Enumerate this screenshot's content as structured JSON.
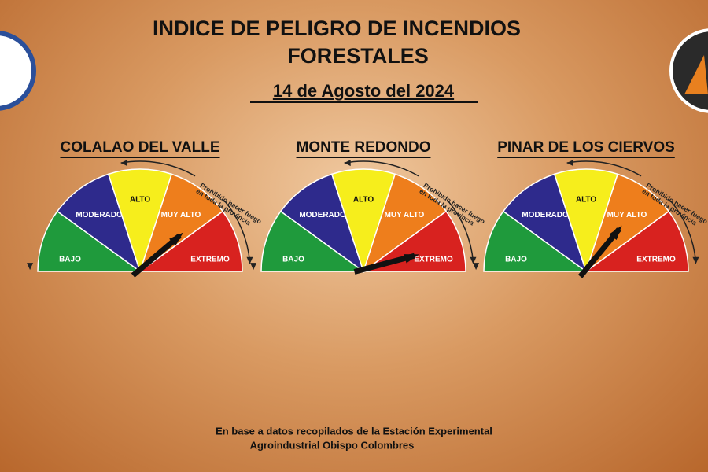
{
  "header": {
    "title_lines": [
      "INDICE DE PELIGRO DE INCENDIOS",
      "FORESTALES"
    ],
    "date": "14 de Agosto del 2024"
  },
  "levels": [
    "BAJO",
    "MODERADO",
    "ALTO",
    "MUY ALTO",
    "EXTREMO"
  ],
  "level_colors": [
    "#1f9a3c",
    "#2e2a8c",
    "#f6ee1c",
    "#ee7e1c",
    "#d8221f"
  ],
  "warning_lines": [
    "Prohibido hacer fuego",
    "en toda la provincia"
  ],
  "gauges": [
    {
      "name": "COLALAO DEL VALLE",
      "needle_deg": 42
    },
    {
      "name": "MONTE REDONDO",
      "needle_deg": 17
    },
    {
      "name": "PINAR DE LOS CIERVOS",
      "needle_deg": 52
    }
  ],
  "footer_lines": [
    "En base a datos recopilados de la Estación Experimental",
    "Agroindustrial  Obispo Colombres"
  ]
}
